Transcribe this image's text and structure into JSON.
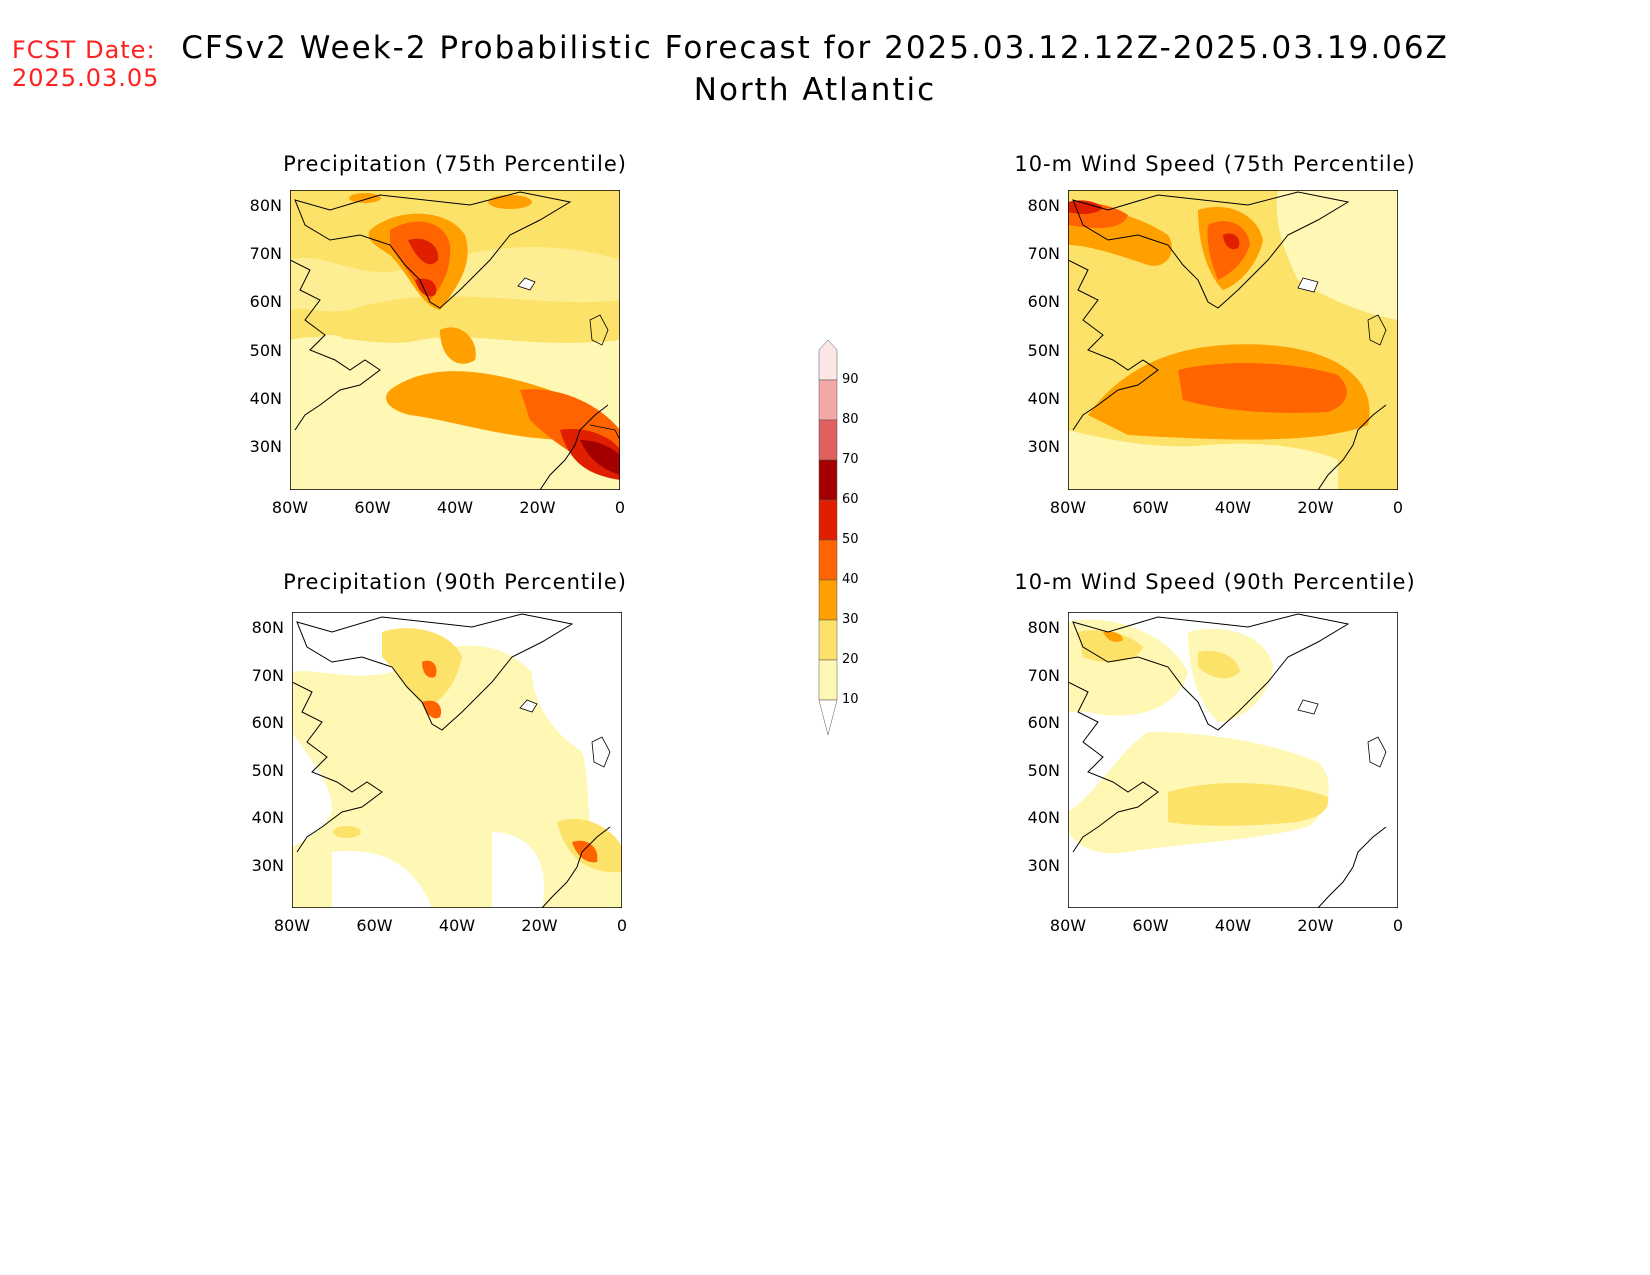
{
  "fcst_date": {
    "label": "FCST Date:",
    "value": "2025.03.05"
  },
  "title": {
    "line1": "CFSv2 Week-2 Probabilistic Forecast for 2025.03.12.12Z-2025.03.19.06Z",
    "line2": "North Atlantic"
  },
  "panels": [
    {
      "title": "Precipitation (75th Percentile)"
    },
    {
      "title": "10-m Wind Speed (75th Percentile)"
    },
    {
      "title": "Precipitation (90th Percentile)"
    },
    {
      "title": "10-m Wind Speed (90th Percentile)"
    }
  ],
  "lat_labels": [
    "80N",
    "70N",
    "60N",
    "50N",
    "40N",
    "30N"
  ],
  "lon_labels": [
    "80W",
    "60W",
    "40W",
    "20W",
    "0"
  ],
  "colorbar": {
    "labels": [
      "90",
      "80",
      "70",
      "60",
      "50",
      "40",
      "30",
      "20",
      "10"
    ],
    "colors": [
      "#fbe6e6",
      "#f4a7a7",
      "#e06060",
      "#a50000",
      "#e01e00",
      "#ff6400",
      "#ffa000",
      "#fde26a",
      "#fff7b4"
    ]
  }
}
